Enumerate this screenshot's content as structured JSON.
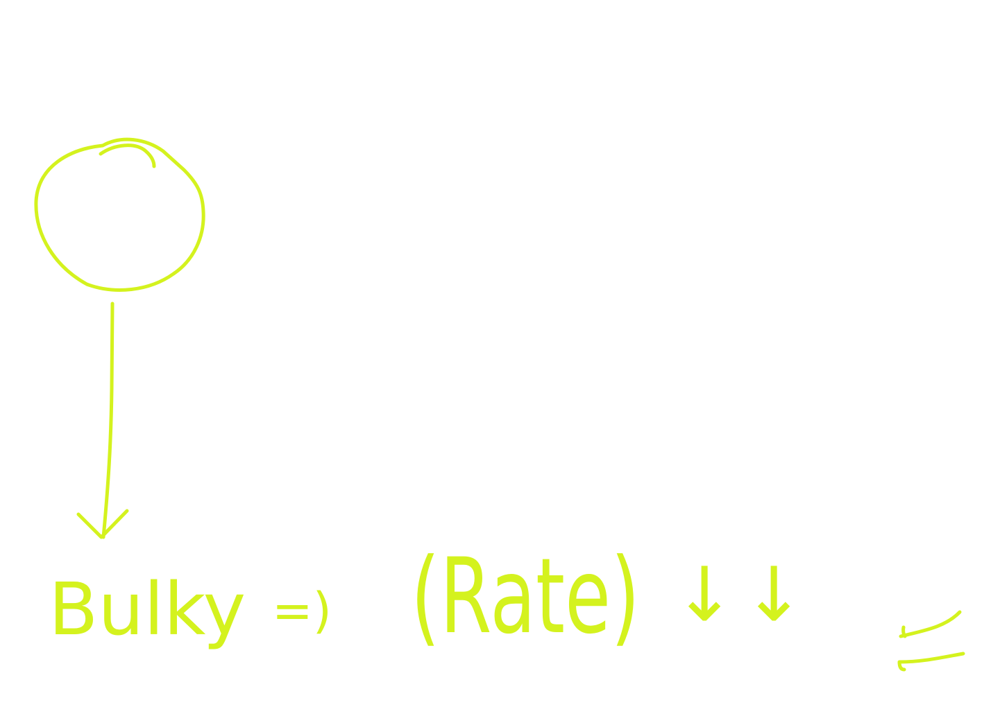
{
  "ink_color": "#d4f21e",
  "background_color": "#ffffff",
  "labels": {
    "word_bulky": "Bulky",
    "implies": "=)",
    "word_rate": "(Rate)",
    "arrow_down": "↓"
  }
}
